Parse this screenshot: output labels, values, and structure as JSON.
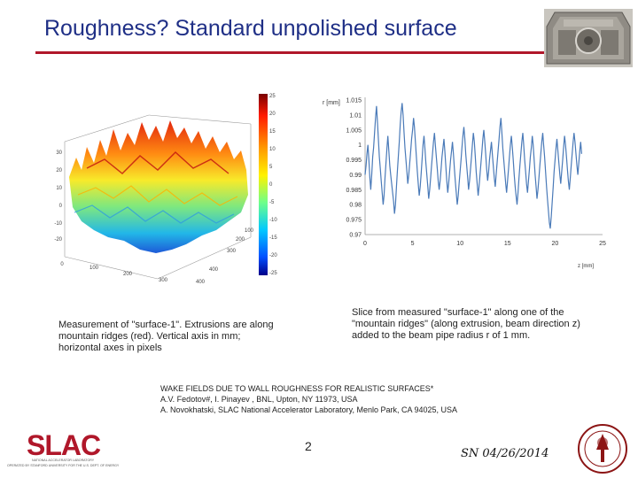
{
  "slide": {
    "title": "Roughness? Standard unpolished surface",
    "caption_left": "Measurement of \"surface-1\". Extrusions are along mountain ridges (red). Vertical axis in mm; horizontal axes in pixels",
    "caption_right": "Slice from measured \"surface-1\" along one of the \"mountain ridges\" (along extrusion, beam direction z) added to the beam pipe radius r of 1 mm.",
    "reference": {
      "line1": "WAKE FIELDS DUE TO WALL ROUGHNESS FOR REALISTIC SURFACES*",
      "line2": "A.V. Fedotov#, I. Pinayev , BNL, Upton, NY 11973, USA",
      "line3": "A. Novokhatski, SLAC National Accelerator Laboratory, Menlo Park, CA 94025, USA"
    },
    "page_number": "2",
    "date": "SN 04/26/2014"
  },
  "logo": {
    "letters": "SLAC",
    "subtitle1": "NATIONAL ACCELERATOR LABORATORY",
    "subtitle2": "OPERATED BY STANFORD UNIVERSITY FOR THE U.S. DEPT. OF ENERGY"
  },
  "colors": {
    "title": "#1f2f86",
    "title_rule": "#b0172a",
    "slac_red": "#b0172a",
    "series": "#4a7ab8"
  },
  "chart_data": [
    {
      "type": "surface",
      "colorbar_ticks": [
        "25",
        "20",
        "15",
        "10",
        "5",
        "0",
        "-5",
        "-10",
        "-15",
        "-20",
        "-25"
      ],
      "z_ticks": [
        "30",
        "20",
        "10",
        "0",
        "-10",
        "-20"
      ],
      "y_ticks": [
        "100",
        "200",
        "300",
        "400"
      ],
      "x_ticks": [
        "0",
        "100",
        "200",
        "300",
        "400"
      ]
    },
    {
      "type": "line",
      "ylabel": "r [mm]",
      "xlabel": "z [mm]",
      "xlim": [
        0,
        25
      ],
      "ylim": [
        0.97,
        1.015
      ],
      "x_ticks": [
        "0",
        "5",
        "10",
        "15",
        "20",
        "25"
      ],
      "y_ticks": [
        "1.015",
        "1.01",
        "1.005",
        "1",
        "0.995",
        "0.99",
        "0.985",
        "0.98",
        "0.975",
        "0.97"
      ],
      "x_step": 0.1,
      "values": [
        0.99,
        0.993,
        0.997,
        1.0,
        0.995,
        0.989,
        0.985,
        0.99,
        0.996,
        0.999,
        1.004,
        1.009,
        1.013,
        1.008,
        1.002,
        0.996,
        0.992,
        0.988,
        0.984,
        0.98,
        0.983,
        0.989,
        0.994,
        0.999,
        1.003,
        0.998,
        0.993,
        0.99,
        0.987,
        0.984,
        0.981,
        0.977,
        0.98,
        0.986,
        0.991,
        0.996,
        1.001,
        1.007,
        1.011,
        1.014,
        1.01,
        1.004,
        0.999,
        0.995,
        0.991,
        0.987,
        0.99,
        0.994,
        0.998,
        1.002,
        1.005,
        1.009,
        1.006,
        1.001,
        0.996,
        0.991,
        0.987,
        0.983,
        0.986,
        0.99,
        0.995,
        1.0,
        1.003,
        0.999,
        0.994,
        0.99,
        0.986,
        0.982,
        0.985,
        0.989,
        0.993,
        0.997,
        1.001,
        1.004,
        1.0,
        0.996,
        0.992,
        0.988,
        0.985,
        0.988,
        0.992,
        0.996,
        0.999,
        1.002,
        0.998,
        0.993,
        0.988,
        0.984,
        0.987,
        0.991,
        0.995,
        0.998,
        1.001,
        0.997,
        0.992,
        0.988,
        0.984,
        0.98,
        0.983,
        0.987,
        0.991,
        0.995,
        0.999,
        1.003,
        1.006,
        1.002,
        0.997,
        0.993,
        0.989,
        0.985,
        0.988,
        0.992,
        0.996,
        1.0,
        1.004,
        1.001,
        0.996,
        0.991,
        0.987,
        0.983,
        0.986,
        0.99,
        0.994,
        0.998,
        1.002,
        1.005,
        1.001,
        0.997,
        0.992,
        0.988,
        0.991,
        0.995,
        0.998,
        1.001,
        0.997,
        0.993,
        0.989,
        0.986,
        0.99,
        0.994,
        0.998,
        1.002,
        1.006,
        1.009,
        1.004,
        0.999,
        0.995,
        0.991,
        0.987,
        0.984,
        0.988,
        0.992,
        0.996,
        1.0,
        1.003,
        0.999,
        0.995,
        0.99,
        0.986,
        0.983,
        0.98,
        0.984,
        0.989,
        0.993,
        0.997,
        1.001,
        1.004,
        1.0,
        0.995,
        0.991,
        0.987,
        0.984,
        0.988,
        0.992,
        0.996,
        0.999,
        1.003,
        1.0,
        0.995,
        0.99,
        0.986,
        0.982,
        0.985,
        0.989,
        0.993,
        0.997,
        1.001,
        1.004,
        1.0,
        0.996,
        0.991,
        0.986,
        0.982,
        0.978,
        0.974,
        0.972,
        0.976,
        0.981,
        0.986,
        0.991,
        0.995,
        0.999,
        1.002,
        0.998,
        0.994,
        0.99,
        0.987,
        0.991,
        0.995,
        0.999,
        1.003,
        1.0,
        0.996,
        0.992,
        0.988,
        0.985,
        0.989,
        0.993,
        0.997,
        1.001,
        1.004,
        1.001,
        0.997,
        0.993,
        0.99,
        0.994,
        0.998,
        1.001,
        0.997
      ]
    }
  ]
}
